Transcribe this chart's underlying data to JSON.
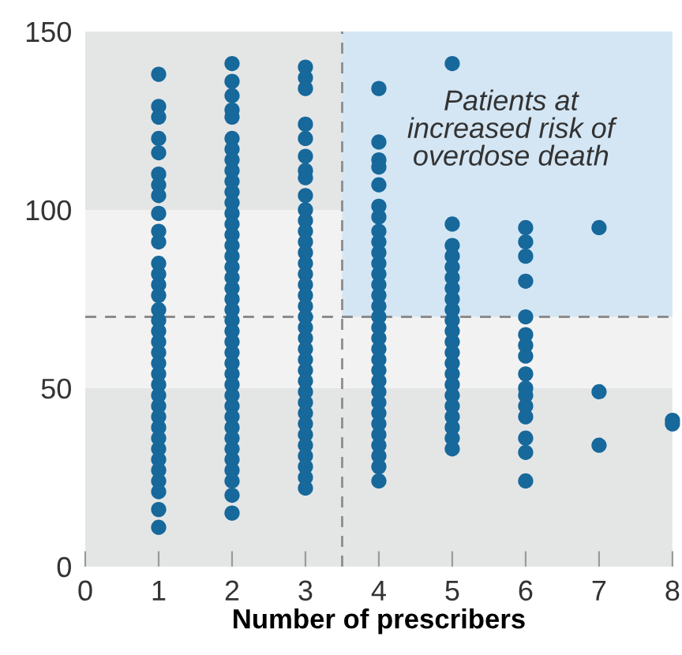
{
  "chart_data": {
    "type": "scatter",
    "xlabel": "Number of prescribers",
    "annotations": [
      "Patients at\nincreased risk of\noverdose death"
    ],
    "xlim": [
      0,
      8
    ],
    "ylim": [
      0,
      150
    ],
    "xticks": [
      0,
      1,
      2,
      3,
      4,
      5,
      6,
      7,
      8
    ],
    "yticks": [
      0,
      50,
      100,
      150
    ],
    "grid": false,
    "legend": false,
    "marker": "circle",
    "ref_lines": [
      {
        "axis": "x",
        "value": 3.5,
        "color": "#8c8c8c",
        "line_style": "dashed"
      },
      {
        "axis": "y",
        "value": 70,
        "color": "#8c8c8c",
        "line_style": "dashed"
      }
    ],
    "bands": [
      {
        "axis": "y",
        "from": 0,
        "to": 50,
        "color": "#e4e6e6"
      },
      {
        "axis": "y",
        "from": 50,
        "to": 100,
        "color": "#f2f2f2"
      },
      {
        "axis": "y",
        "from": 100,
        "to": 150,
        "color": "#e4e6e6"
      },
      {
        "axis": "x",
        "from": 3.5,
        "to": 8,
        "color": "#d4e6f4"
      }
    ],
    "series": [
      {
        "color": "#17689b",
        "x": [
          1,
          1,
          1,
          1,
          1,
          1,
          1,
          1,
          1,
          1,
          1,
          1,
          1,
          1,
          1,
          1,
          1,
          1,
          1,
          1,
          1,
          1,
          1,
          1,
          1,
          1,
          1,
          1,
          1,
          1,
          1,
          1,
          1,
          1,
          1,
          2,
          2,
          2,
          2,
          2,
          2,
          2,
          2,
          2,
          2,
          2,
          2,
          2,
          2,
          2,
          2,
          2,
          2,
          2,
          2,
          2,
          2,
          2,
          2,
          2,
          2,
          2,
          2,
          2,
          2,
          2,
          2,
          2,
          2,
          2,
          2,
          2,
          2,
          2,
          2,
          3,
          3,
          3,
          3,
          3,
          3,
          3,
          3,
          3,
          3,
          3,
          3,
          3,
          3,
          3,
          3,
          3,
          3,
          3,
          3,
          3,
          3,
          3,
          3,
          3,
          3,
          3,
          3,
          3,
          3,
          3,
          3,
          3,
          3,
          3,
          3,
          4,
          4,
          4,
          4,
          4,
          4,
          4,
          4,
          4,
          4,
          4,
          4,
          4,
          4,
          4,
          4,
          4,
          4,
          4,
          4,
          4,
          4,
          4,
          4,
          4,
          4,
          4,
          4,
          4,
          4,
          4,
          5,
          5,
          5,
          5,
          5,
          5,
          5,
          5,
          5,
          5,
          5,
          5,
          5,
          5,
          5,
          5,
          5,
          5,
          5,
          5,
          5,
          5,
          6,
          6,
          6,
          6,
          6,
          6,
          6,
          6,
          6,
          6,
          6,
          6,
          6,
          6,
          6,
          6,
          7,
          7,
          7,
          8,
          8
        ],
        "values": [
          138,
          129,
          126,
          120,
          116,
          110,
          107,
          104,
          99,
          94,
          91,
          85,
          82,
          79,
          76,
          72,
          69,
          66,
          63,
          60,
          57,
          54,
          51,
          48,
          45,
          42,
          39,
          36,
          33,
          30,
          27,
          24,
          21,
          16,
          11,
          141,
          136,
          132,
          128,
          126,
          120,
          117,
          114,
          111,
          108,
          105,
          102,
          99,
          96,
          93,
          90,
          87,
          84,
          81,
          78,
          75,
          72,
          69,
          66,
          63,
          60,
          57,
          54,
          51,
          48,
          45,
          42,
          39,
          36,
          33,
          30,
          27,
          24,
          20,
          15,
          140,
          137,
          134,
          124,
          120,
          115,
          111,
          109,
          104,
          100,
          97,
          94,
          91,
          88,
          85,
          82,
          79,
          76,
          73,
          70,
          67,
          64,
          61,
          58,
          55,
          52,
          49,
          46,
          43,
          40,
          37,
          34,
          31,
          28,
          25,
          22,
          134,
          119,
          114,
          112,
          107,
          101,
          98,
          94,
          91,
          88,
          85,
          82,
          79,
          76,
          73,
          70,
          67,
          64,
          61,
          58,
          55,
          52,
          49,
          46,
          43,
          40,
          37,
          34,
          31,
          28,
          24,
          141,
          96,
          90,
          87,
          84,
          81,
          78,
          75,
          72,
          69,
          66,
          63,
          60,
          57,
          54,
          51,
          48,
          45,
          42,
          39,
          36,
          33,
          95,
          91,
          87,
          80,
          70,
          65,
          62,
          59,
          54,
          50,
          48,
          45,
          42,
          36,
          32,
          24,
          95,
          49,
          34,
          41,
          40
        ]
      }
    ]
  }
}
